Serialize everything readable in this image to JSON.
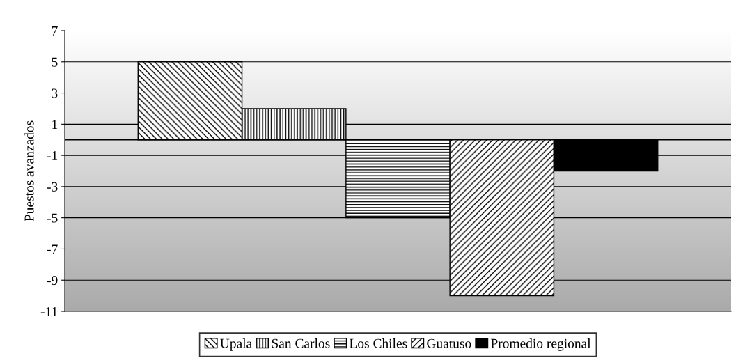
{
  "chart_data": {
    "type": "bar",
    "ylabel": "Puestos avanzados",
    "categories": [
      null
    ],
    "series": [
      {
        "name": "Upala",
        "color": "#000000",
        "values": [
          5
        ]
      },
      {
        "name": "San Carlos",
        "color": "#000000",
        "values": [
          2
        ]
      },
      {
        "name": "Los Chiles",
        "color": "#000000",
        "values": [
          -5
        ]
      },
      {
        "name": "Guatuso",
        "color": "#000000",
        "values": [
          -10
        ]
      },
      {
        "name": "Promedio regional",
        "color": "#000000",
        "values": [
          -2
        ]
      }
    ],
    "ylim": [
      -11,
      7
    ],
    "yticks": [
      -11,
      -9,
      -7,
      -5,
      -3,
      -1,
      1,
      3,
      5,
      7
    ],
    "grid": "y",
    "legend": "bottom"
  }
}
